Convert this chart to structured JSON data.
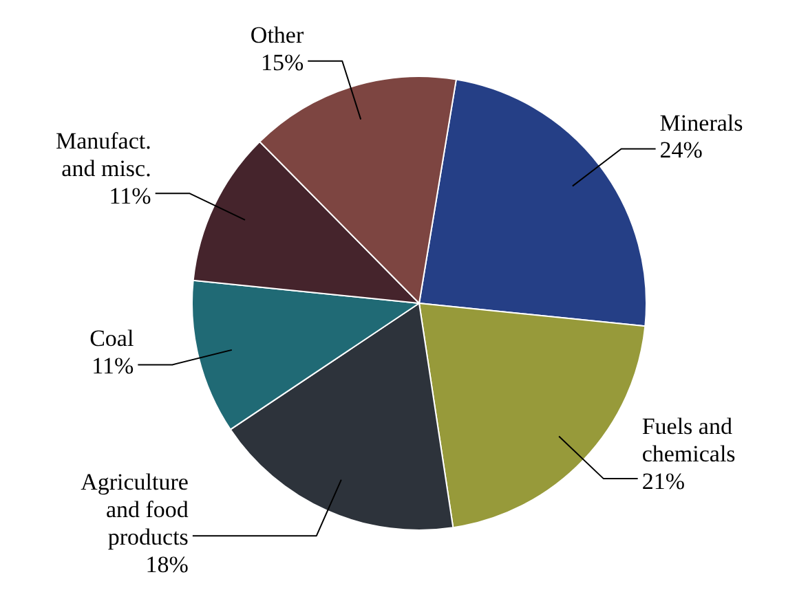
{
  "chart_data": {
    "type": "pie",
    "categories": [
      "Minerals",
      "Fuels and\nchemicals",
      "Agriculture\nand food\nproducts",
      "Coal",
      "Manufact.\nand misc.",
      "Other"
    ],
    "values": [
      24,
      21,
      18,
      11,
      11,
      15
    ],
    "value_labels": [
      "24%",
      "21%",
      "18%",
      "11%",
      "11%",
      "15%"
    ],
    "colors": [
      "#253f86",
      "#979a3a",
      "#2d333b",
      "#206a75",
      "#45242c",
      "#7d4541"
    ]
  }
}
